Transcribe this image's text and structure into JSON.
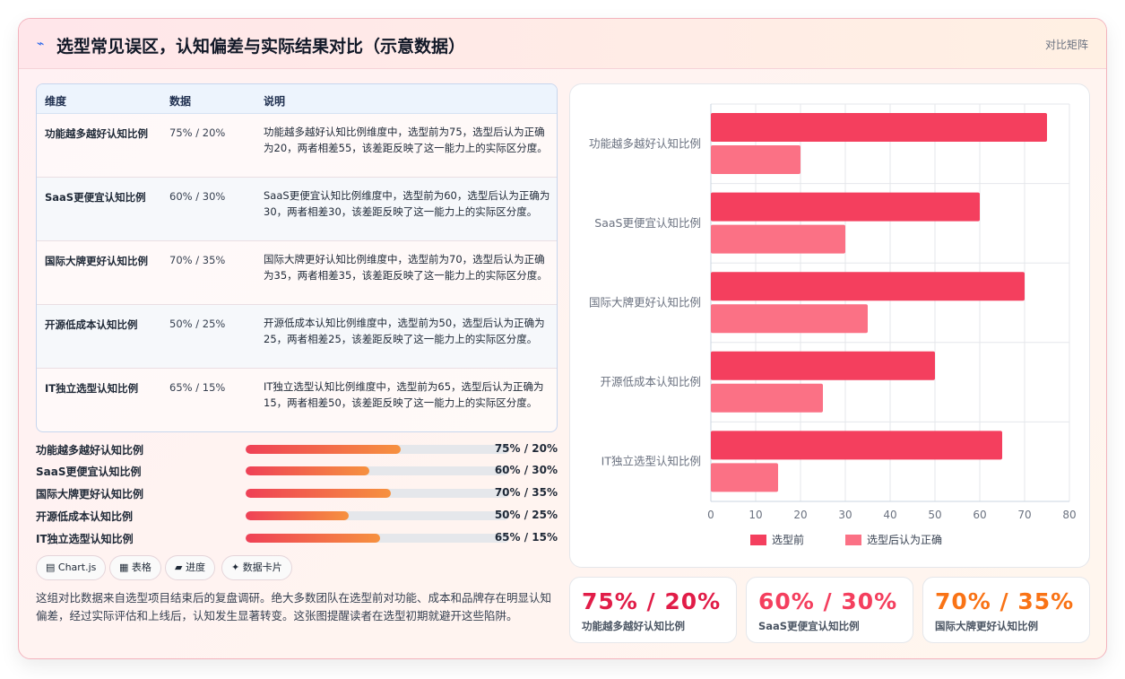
{
  "header": {
    "icon": "chart-line-icon",
    "title": "选型常见误区，认知偏差与实际结果对比（示意数据）",
    "tag": "对比矩阵"
  },
  "table": {
    "headers": [
      "维度",
      "数据",
      "说明"
    ],
    "rows": [
      {
        "dim": "功能越多越好认知比例",
        "data": "75% / 20%",
        "desc": "功能越多越好认知比例维度中，选型前为75，选型后认为正确为20，两者相差55，该差距反映了这一能力上的实际区分度。"
      },
      {
        "dim": "SaaS更便宜认知比例",
        "data": "60% / 30%",
        "desc": "SaaS更便宜认知比例维度中，选型前为60，选型后认为正确为30，两者相差30，该差距反映了这一能力上的实际区分度。"
      },
      {
        "dim": "国际大牌更好认知比例",
        "data": "70% / 35%",
        "desc": "国际大牌更好认知比例维度中，选型前为70，选型后认为正确为35，两者相差35，该差距反映了这一能力上的实际区分度。"
      },
      {
        "dim": "开源低成本认知比例",
        "data": "50% / 25%",
        "desc": "开源低成本认知比例维度中，选型前为50，选型后认为正确为25，两者相差25，该差距反映了这一能力上的实际区分度。"
      },
      {
        "dim": "IT独立选型认知比例",
        "data": "65% / 15%",
        "desc": "IT独立选型认知比例维度中，选型前为65，选型后认为正确为15，两者相差50，该差距反映了这一能力上的实际区分度。"
      }
    ]
  },
  "progress": [
    {
      "label": "功能越多越好认知比例",
      "value_text": "75% / 20%",
      "fill": 0.59
    },
    {
      "label": "SaaS更便宜认知比例",
      "value_text": "60% / 30%",
      "fill": 0.47
    },
    {
      "label": "国际大牌更好认知比例",
      "value_text": "70% / 35%",
      "fill": 0.55
    },
    {
      "label": "开源低成本认知比例",
      "value_text": "50% / 25%",
      "fill": 0.39
    },
    {
      "label": "IT独立选型认知比例",
      "value_text": "65% / 15%",
      "fill": 0.51
    }
  ],
  "chips": [
    {
      "icon": "chart-icon",
      "label": "▤ Chart.js"
    },
    {
      "icon": "table-icon",
      "label": "▦ 表格"
    },
    {
      "icon": "progress-icon",
      "label": "▰ 进度"
    },
    {
      "icon": "sparkle-icon",
      "label": "✦ 数据卡片"
    }
  ],
  "summary": "这组对比数据来自选型项目结束后的复盘调研。绝大多数团队在选型前对功能、成本和品牌存在明显认知偏差，经过实际评估和上线后，认知发生显著转变。这张图提醒读者在选型初期就避开这些陷阱。",
  "chart_data": {
    "type": "bar",
    "orientation": "horizontal",
    "categories": [
      "功能越多越好认知比例",
      "SaaS更便宜认知比例",
      "国际大牌更好认知比例",
      "开源低成本认知比例",
      "IT独立选型认知比例"
    ],
    "series": [
      {
        "name": "选型前",
        "values": [
          75,
          60,
          70,
          50,
          65
        ],
        "color": "#f43f5e"
      },
      {
        "name": "选型后认为正确",
        "values": [
          20,
          30,
          35,
          25,
          15
        ],
        "color": "#fb7185"
      }
    ],
    "xlim": [
      0,
      80
    ],
    "xticks": [
      0,
      10,
      20,
      30,
      40,
      50,
      60,
      70,
      80
    ],
    "grid": true,
    "legend": "bottom"
  },
  "kpis": [
    {
      "value": "75% / 20%",
      "label": "功能越多越好认知比例",
      "color": "#e11d48"
    },
    {
      "value": "60% / 30%",
      "label": "SaaS更便宜认知比例",
      "color": "#f43f5e"
    },
    {
      "value": "70% / 35%",
      "label": "国际大牌更好认知比例",
      "color": "#f97316"
    }
  ],
  "colors": {
    "accent": "#f43f5e",
    "accent_light": "#fb7185",
    "orange": "#f6913f"
  }
}
